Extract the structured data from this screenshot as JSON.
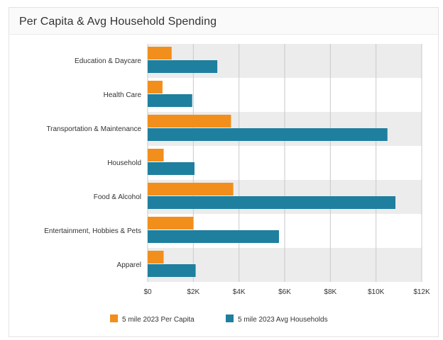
{
  "card": {
    "title": "Per Capita & Avg Household Spending"
  },
  "chart_data": {
    "type": "bar",
    "orientation": "horizontal",
    "categories": [
      "Education & Daycare",
      "Health Care",
      "Transportation & Maintenance",
      "Household",
      "Food & Alcohol",
      "Entertainment, Hobbies & Pets",
      "Apparel"
    ],
    "series": [
      {
        "name": "5 mile 2023 Per Capita",
        "color": "#f28e1c",
        "values": [
          1050,
          650,
          3650,
          700,
          3750,
          2000,
          700
        ]
      },
      {
        "name": "5 mile 2023 Avg Households",
        "color": "#1f7f9e",
        "values": [
          3050,
          1950,
          10500,
          2050,
          10850,
          5750,
          2100
        ]
      }
    ],
    "xlim": [
      0,
      12000
    ],
    "xticks": [
      0,
      2000,
      4000,
      6000,
      8000,
      10000,
      12000
    ],
    "xtick_labels": [
      "$0",
      "$2K",
      "$4K",
      "$6K",
      "$8K",
      "$10K",
      "$12K"
    ],
    "grid": true,
    "legend_position": "bottom"
  }
}
